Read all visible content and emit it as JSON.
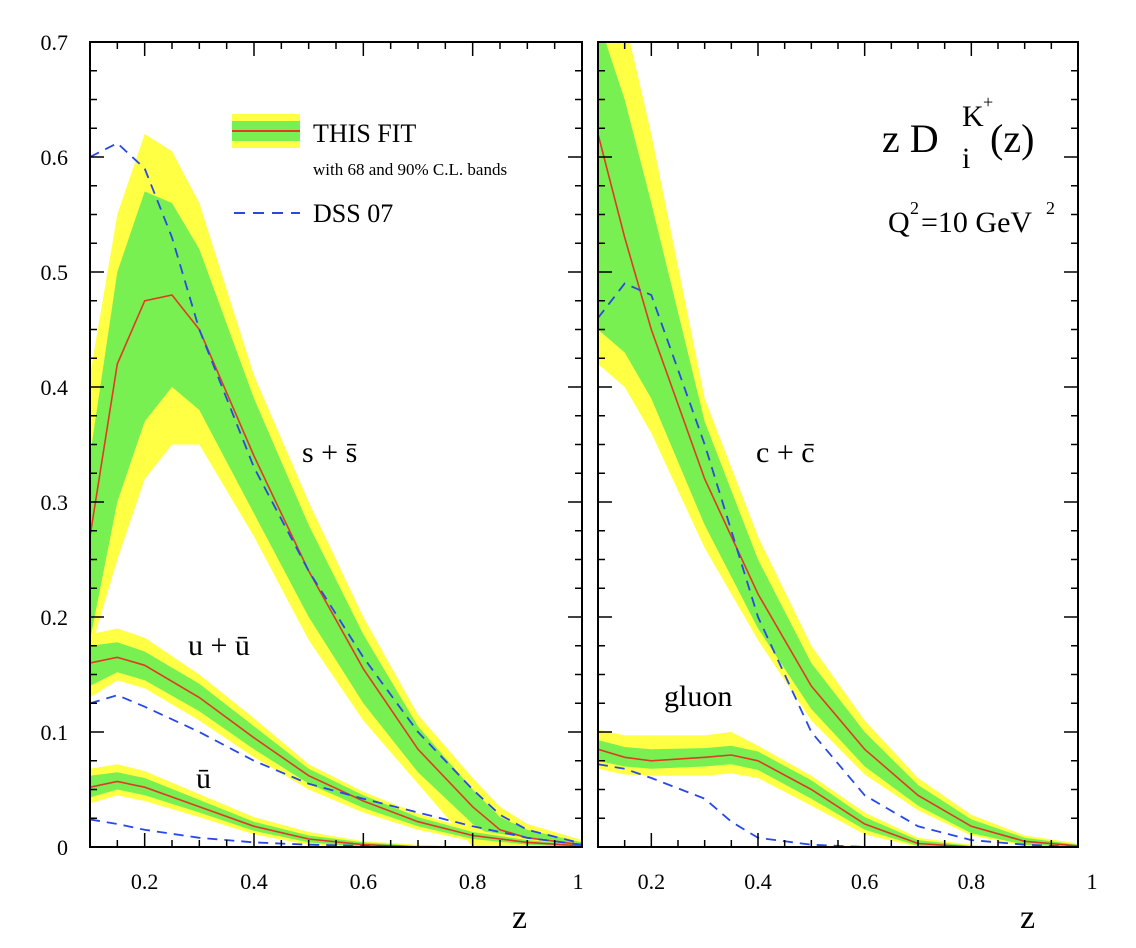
{
  "chart_data": [
    {
      "type": "line",
      "panel": "left",
      "xlabel": "z",
      "ylabel": "",
      "xlim": [
        0.1,
        1.0
      ],
      "ylim": [
        0,
        0.7
      ],
      "x_ticks": [
        "0.2",
        "0.4",
        "0.6",
        "0.8",
        "1"
      ],
      "y_ticks": [
        "0",
        "0.1",
        "0.2",
        "0.3",
        "0.4",
        "0.5",
        "0.6",
        "0.7"
      ],
      "legend": {
        "placement": "top-left",
        "fit_label": "THIS FIT",
        "fit_sublabel": "with 68 and 90% C.L. bands",
        "dss_label": "DSS 07"
      },
      "colors": {
        "fit": "#e03b22",
        "band68": "#79f051",
        "band90": "#ffff44",
        "dss": "#2848e8"
      },
      "series": [
        {
          "annotation": "s + s̄",
          "x": [
            0.1,
            0.15,
            0.2,
            0.25,
            0.3,
            0.4,
            0.5,
            0.6,
            0.7,
            0.8,
            0.85,
            0.9,
            1.0
          ],
          "fit": [
            0.27,
            0.42,
            0.475,
            0.48,
            0.45,
            0.34,
            0.24,
            0.155,
            0.085,
            0.035,
            0.015,
            0.008,
            0.002
          ],
          "band68": [
            [
              0.18,
              0.34
            ],
            [
              0.3,
              0.5
            ],
            [
              0.37,
              0.57
            ],
            [
              0.4,
              0.56
            ],
            [
              0.38,
              0.52
            ],
            [
              0.29,
              0.39
            ],
            [
              0.2,
              0.28
            ],
            [
              0.125,
              0.185
            ],
            [
              0.065,
              0.105
            ],
            [
              0.02,
              0.05
            ],
            [
              0.005,
              0.026
            ],
            [
              0.002,
              0.015
            ],
            [
              0.0,
              0.004
            ]
          ],
          "band90": [
            [
              0.17,
              0.41
            ],
            [
              0.25,
              0.55
            ],
            [
              0.32,
              0.62
            ],
            [
              0.35,
              0.605
            ],
            [
              0.35,
              0.56
            ],
            [
              0.27,
              0.41
            ],
            [
              0.18,
              0.3
            ],
            [
              0.11,
              0.2
            ],
            [
              0.055,
              0.115
            ],
            [
              0.0,
              0.06
            ],
            [
              0.0,
              0.035
            ],
            [
              0.0,
              0.02
            ],
            [
              0.0,
              0.006
            ]
          ],
          "dss": [
            0.6,
            0.612,
            0.59,
            0.53,
            0.45,
            0.33,
            0.24,
            0.165,
            0.1,
            0.05,
            0.028,
            0.015,
            0.003
          ]
        },
        {
          "annotation": "u + ū",
          "x": [
            0.1,
            0.15,
            0.2,
            0.3,
            0.4,
            0.5,
            0.6,
            0.7,
            0.8,
            0.9,
            1.0
          ],
          "fit": [
            0.16,
            0.165,
            0.158,
            0.13,
            0.095,
            0.062,
            0.04,
            0.022,
            0.01,
            0.004,
            0.001
          ],
          "band68": [
            [
              0.14,
              0.175
            ],
            [
              0.152,
              0.178
            ],
            [
              0.145,
              0.17
            ],
            [
              0.118,
              0.142
            ],
            [
              0.085,
              0.105
            ],
            [
              0.055,
              0.068
            ],
            [
              0.034,
              0.045
            ],
            [
              0.018,
              0.026
            ],
            [
              0.007,
              0.013
            ],
            [
              0.002,
              0.006
            ],
            [
              0.0,
              0.002
            ]
          ],
          "band90": [
            [
              0.13,
              0.185
            ],
            [
              0.145,
              0.19
            ],
            [
              0.138,
              0.182
            ],
            [
              0.11,
              0.15
            ],
            [
              0.078,
              0.112
            ],
            [
              0.05,
              0.072
            ],
            [
              0.03,
              0.048
            ],
            [
              0.015,
              0.029
            ],
            [
              0.005,
              0.015
            ],
            [
              0.001,
              0.008
            ],
            [
              0.0,
              0.003
            ]
          ],
          "dss": [
            0.125,
            0.132,
            0.122,
            0.1,
            0.075,
            0.055,
            0.042,
            0.03,
            0.018,
            0.008,
            0.002
          ]
        },
        {
          "annotation": "ū",
          "x": [
            0.1,
            0.15,
            0.2,
            0.3,
            0.4,
            0.5,
            0.6,
            0.7,
            0.8,
            0.9,
            1.0
          ],
          "fit": [
            0.052,
            0.057,
            0.052,
            0.035,
            0.018,
            0.007,
            0.002,
            0.0,
            0.0,
            0.0,
            0.0
          ],
          "band68": [
            [
              0.043,
              0.062
            ],
            [
              0.05,
              0.065
            ],
            [
              0.045,
              0.06
            ],
            [
              0.03,
              0.041
            ],
            [
              0.014,
              0.022
            ],
            [
              0.004,
              0.01
            ],
            [
              0.0,
              0.004
            ],
            [
              0.0,
              0.001
            ],
            [
              0.0,
              0.0
            ],
            [
              0.0,
              0.0
            ],
            [
              0.0,
              0.0
            ]
          ],
          "band90": [
            [
              0.038,
              0.068
            ],
            [
              0.045,
              0.072
            ],
            [
              0.04,
              0.066
            ],
            [
              0.026,
              0.046
            ],
            [
              0.011,
              0.026
            ],
            [
              0.002,
              0.013
            ],
            [
              0.0,
              0.005
            ],
            [
              0.0,
              0.002
            ],
            [
              0.0,
              0.0
            ],
            [
              0.0,
              0.0
            ],
            [
              0.0,
              0.0
            ]
          ],
          "dss": [
            0.024,
            0.02,
            0.015,
            0.008,
            0.004,
            0.002,
            0.001,
            0.0,
            0.0,
            0.0,
            0.0
          ]
        }
      ]
    },
    {
      "type": "line",
      "panel": "right",
      "xlabel": "z",
      "ylabel": "",
      "xlim": [
        0.1,
        1.0
      ],
      "ylim": [
        0,
        0.7
      ],
      "x_ticks": [
        "0.2",
        "0.4",
        "0.6",
        "0.8",
        "1"
      ],
      "colors": {
        "fit": "#e03b22",
        "band68": "#79f051",
        "band90": "#ffff44",
        "dss": "#2848e8"
      },
      "annotations": {
        "title_main": "z D",
        "title_sub": "i",
        "title_sup": "K",
        "title_sup2": "+",
        "title_tail": "(z)",
        "q2_a": "Q",
        "q2_sup": "2",
        "q2_b": "=10 GeV",
        "q2_sup2": "2"
      },
      "series": [
        {
          "annotation": "c + c̄",
          "x": [
            0.1,
            0.15,
            0.2,
            0.3,
            0.4,
            0.5,
            0.6,
            0.7,
            0.8,
            0.9,
            1.0
          ],
          "fit": [
            0.62,
            0.53,
            0.45,
            0.32,
            0.22,
            0.14,
            0.085,
            0.045,
            0.018,
            0.005,
            0.001
          ],
          "band68": [
            [
              0.45,
              0.72
            ],
            [
              0.43,
              0.65
            ],
            [
              0.39,
              0.56
            ],
            [
              0.28,
              0.37
            ],
            [
              0.19,
              0.25
            ],
            [
              0.12,
              0.16
            ],
            [
              0.07,
              0.1
            ],
            [
              0.036,
              0.054
            ],
            [
              0.012,
              0.024
            ],
            [
              0.002,
              0.008
            ],
            [
              0.0,
              0.002
            ]
          ],
          "band90": [
            [
              0.42,
              0.75
            ],
            [
              0.4,
              0.72
            ],
            [
              0.36,
              0.62
            ],
            [
              0.26,
              0.39
            ],
            [
              0.18,
              0.27
            ],
            [
              0.11,
              0.175
            ],
            [
              0.063,
              0.11
            ],
            [
              0.032,
              0.06
            ],
            [
              0.01,
              0.028
            ],
            [
              0.001,
              0.01
            ],
            [
              0.0,
              0.003
            ]
          ],
          "dss": [
            0.46,
            0.49,
            0.48,
            0.35,
            0.2,
            0.1,
            0.045,
            0.018,
            0.006,
            0.002,
            0.0
          ]
        },
        {
          "annotation": "gluon",
          "x": [
            0.1,
            0.15,
            0.2,
            0.3,
            0.35,
            0.4,
            0.5,
            0.6,
            0.7,
            0.8,
            0.9,
            1.0
          ],
          "fit": [
            0.085,
            0.078,
            0.075,
            0.078,
            0.08,
            0.075,
            0.05,
            0.02,
            0.003,
            0.0,
            0.0,
            0.0
          ],
          "band68": [
            [
              0.075,
              0.093
            ],
            [
              0.07,
              0.087
            ],
            [
              0.068,
              0.085
            ],
            [
              0.07,
              0.086
            ],
            [
              0.072,
              0.088
            ],
            [
              0.067,
              0.083
            ],
            [
              0.042,
              0.058
            ],
            [
              0.015,
              0.026
            ],
            [
              0.001,
              0.006
            ],
            [
              0.0,
              0.001
            ],
            [
              0.0,
              0.0
            ],
            [
              0.0,
              0.0
            ]
          ],
          "band90": [
            [
              0.068,
              0.102
            ],
            [
              0.063,
              0.097
            ],
            [
              0.062,
              0.097
            ],
            [
              0.062,
              0.097
            ],
            [
              0.064,
              0.1
            ],
            [
              0.06,
              0.088
            ],
            [
              0.036,
              0.062
            ],
            [
              0.011,
              0.03
            ],
            [
              0.0,
              0.008
            ],
            [
              0.0,
              0.002
            ],
            [
              0.0,
              0.0
            ],
            [
              0.0,
              0.0
            ]
          ],
          "dss": [
            0.072,
            0.068,
            0.06,
            0.042,
            0.022,
            0.008,
            0.002,
            0.0,
            0.0,
            0.0,
            0.0,
            0.0
          ]
        }
      ]
    }
  ]
}
